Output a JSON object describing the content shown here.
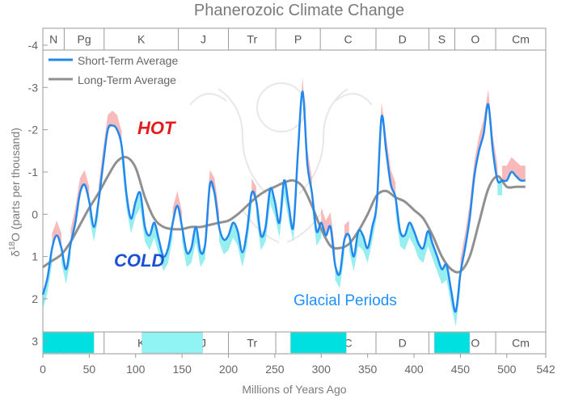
{
  "chart_data": {
    "type": "line",
    "title": "Phanerozoic Climate Change",
    "xlabel": "Millions of Years Ago",
    "xlim": [
      0,
      542
    ],
    "xticks": [
      0,
      50,
      100,
      150,
      200,
      250,
      300,
      350,
      400,
      450,
      500,
      542
    ],
    "xtick_labels": [
      "0",
      "50",
      "100",
      "150",
      "200",
      "250",
      "300",
      "350",
      "400",
      "450",
      "500",
      "542"
    ],
    "ylim": [
      -4.4,
      3.3
    ],
    "y_inverted": true,
    "yticks": [
      -4,
      -3,
      -2,
      -1,
      0,
      1,
      2,
      3
    ],
    "ytick_labels": [
      "-4",
      "-3",
      "-2",
      "-1",
      "0",
      "1",
      "2",
      "3"
    ],
    "ylabel_parts": [
      "δ",
      "18",
      "O (parts per thousand)"
    ],
    "grid": false,
    "legend_position": "top-left",
    "periods": [
      {
        "label": "N",
        "start": 0,
        "end": 23
      },
      {
        "label": "Pg",
        "start": 23,
        "end": 66
      },
      {
        "label": "K",
        "start": 66,
        "end": 146
      },
      {
        "label": "J",
        "start": 146,
        "end": 200
      },
      {
        "label": "Tr",
        "start": 200,
        "end": 251
      },
      {
        "label": "P",
        "start": 251,
        "end": 299
      },
      {
        "label": "C",
        "start": 299,
        "end": 359
      },
      {
        "label": "D",
        "start": 359,
        "end": 416
      },
      {
        "label": "S",
        "start": 416,
        "end": 444
      },
      {
        "label": "O",
        "start": 444,
        "end": 488
      },
      {
        "label": "Cm",
        "start": 488,
        "end": 542
      }
    ],
    "annotations": {
      "hot": "HOT",
      "cold": "COLD",
      "glacial_title": "Glacial Periods"
    },
    "glacial_periods": [
      {
        "start": 0,
        "end": 55,
        "color": "#00e0e0"
      },
      {
        "start": 107,
        "end": 172,
        "color": "#90f4f4"
      },
      {
        "start": 267,
        "end": 327,
        "color": "#00e0e0"
      },
      {
        "start": 422,
        "end": 460,
        "color": "#00e0e0"
      }
    ],
    "series": [
      {
        "name": "Short-Term Average",
        "color": "#2288ee",
        "x": [
          0,
          5,
          10,
          15,
          20,
          25,
          30,
          35,
          40,
          45,
          50,
          55,
          60,
          65,
          70,
          75,
          80,
          85,
          90,
          95,
          100,
          105,
          110,
          115,
          120,
          125,
          130,
          135,
          140,
          145,
          150,
          155,
          160,
          165,
          170,
          175,
          180,
          185,
          190,
          195,
          200,
          205,
          210,
          215,
          220,
          225,
          230,
          235,
          240,
          245,
          250,
          255,
          260,
          265,
          270,
          275,
          280,
          285,
          290,
          295,
          300,
          305,
          310,
          315,
          320,
          325,
          330,
          335,
          340,
          345,
          350,
          355,
          360,
          365,
          370,
          375,
          380,
          385,
          390,
          395,
          400,
          405,
          410,
          415,
          420,
          425,
          430,
          435,
          440,
          445,
          450,
          455,
          460,
          465,
          470,
          475,
          480,
          485,
          490,
          495,
          500,
          505,
          510,
          515,
          520
        ],
        "values": [
          1.9,
          1.5,
          0.8,
          0.5,
          0.8,
          1.3,
          0.7,
          0.2,
          -0.5,
          -0.7,
          -0.3,
          0.3,
          -0.3,
          -1.2,
          -2.0,
          -2.1,
          -2.0,
          -1.6,
          -0.5,
          0.1,
          -0.3,
          -0.5,
          0.3,
          0.5,
          0.2,
          0.6,
          1.0,
          0.8,
          0.2,
          -0.2,
          0.3,
          0.9,
          0.8,
          0.3,
          0.9,
          0.7,
          -0.7,
          -0.5,
          0.3,
          0.6,
          0.5,
          0.2,
          0.4,
          0.9,
          0.4,
          -0.5,
          -0.3,
          0.5,
          0.3,
          -0.6,
          -0.3,
          0.2,
          -0.8,
          -0.2,
          0.3,
          -1.5,
          -2.9,
          -1.2,
          -0.5,
          0.4,
          0.2,
          0.5,
          0.3,
          1.2,
          1.4,
          0.6,
          0.5,
          1.0,
          0.4,
          0.5,
          0.8,
          0.3,
          -0.3,
          -2.3,
          -1.5,
          -0.7,
          -0.4,
          0.4,
          0.5,
          0.2,
          0.4,
          0.7,
          0.8,
          0.4,
          0.7,
          1.0,
          1.3,
          1.2,
          1.8,
          2.3,
          1.4,
          0.8,
          0.1,
          -0.9,
          -1.5,
          -1.9,
          -2.6,
          -1.5,
          -0.8,
          -0.8,
          -0.8,
          -1.0,
          -0.9,
          -0.8,
          -0.8
        ]
      },
      {
        "name": "Long-Term Average",
        "color": "#909090",
        "x": [
          0,
          10,
          20,
          30,
          40,
          50,
          60,
          70,
          80,
          90,
          100,
          110,
          120,
          130,
          140,
          150,
          160,
          170,
          180,
          190,
          200,
          210,
          220,
          230,
          240,
          250,
          260,
          270,
          280,
          290,
          300,
          310,
          320,
          330,
          340,
          350,
          360,
          370,
          380,
          390,
          400,
          410,
          420,
          430,
          440,
          450,
          460,
          470,
          480,
          490,
          500,
          510,
          520
        ],
        "values": [
          1.25,
          1.1,
          0.95,
          0.65,
          0.25,
          -0.15,
          -0.5,
          -0.9,
          -1.25,
          -1.35,
          -1.1,
          -0.4,
          0.1,
          0.3,
          0.35,
          0.35,
          0.3,
          0.3,
          0.25,
          0.2,
          0.15,
          0.0,
          -0.2,
          -0.4,
          -0.55,
          -0.65,
          -0.75,
          -0.8,
          -0.65,
          -0.2,
          0.35,
          0.75,
          0.8,
          0.7,
          0.4,
          0.0,
          -0.45,
          -0.55,
          -0.4,
          -0.3,
          -0.1,
          0.1,
          0.5,
          1.0,
          1.3,
          1.35,
          1.0,
          0.2,
          -0.6,
          -0.9,
          -0.65,
          -0.65,
          -0.65
        ]
      }
    ],
    "hot_band_color": "#f08080",
    "cold_band_color": "#3fe0e0"
  }
}
